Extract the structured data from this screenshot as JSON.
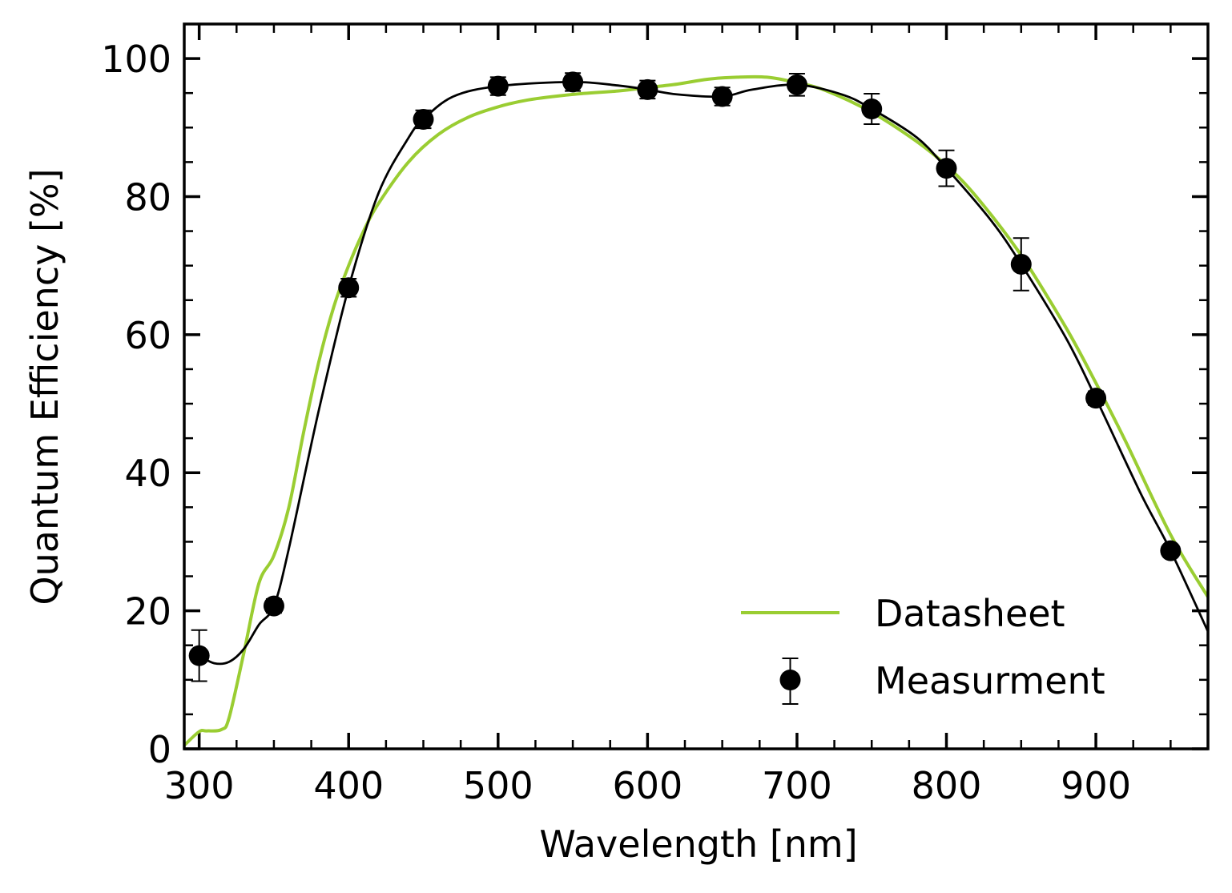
{
  "chart_data": {
    "type": "line",
    "xlabel": "Wavelength [nm]",
    "ylabel": "Quantum Efficiency [%]",
    "xlim": [
      290,
      975
    ],
    "ylim": [
      0,
      105
    ],
    "x_major_ticks": [
      300,
      400,
      500,
      600,
      700,
      800,
      900
    ],
    "x_tick_labels": [
      "300",
      "400",
      "500",
      "600",
      "700",
      "800",
      "900"
    ],
    "x_minor_step": 25,
    "y_major_ticks": [
      0,
      20,
      40,
      60,
      80,
      100
    ],
    "y_tick_labels": [
      "0",
      "20",
      "40",
      "60",
      "80",
      "100"
    ],
    "y_minor_step": 5,
    "grid": false,
    "legend_position": "bottom-right",
    "colors": {
      "datasheet": "#9acd32",
      "measurement": "#000000",
      "fit": "#000000"
    },
    "series": [
      {
        "name": "Datasheet",
        "kind": "line",
        "x": [
          290,
          300,
          305,
          315,
          320,
          330,
          340,
          350,
          360,
          370,
          380,
          390,
          400,
          410,
          420,
          440,
          460,
          480,
          500,
          520,
          550,
          580,
          600,
          620,
          640,
          660,
          680,
          700,
          720,
          750,
          780,
          800,
          820,
          850,
          880,
          900,
          920,
          950,
          975
        ],
        "y": [
          0.5,
          2.5,
          2.6,
          2.8,
          4.5,
          14,
          24,
          28,
          35,
          46,
          56,
          64,
          70,
          75,
          79,
          85,
          89,
          91.5,
          93,
          94,
          94.8,
          95.3,
          95.8,
          96.3,
          97,
          97.3,
          97.3,
          96.5,
          95.3,
          92.2,
          88,
          84.5,
          80,
          71.5,
          61,
          53,
          44.5,
          31,
          22
        ]
      },
      {
        "name": "Measurment",
        "kind": "errorbar",
        "x": [
          300,
          350,
          400,
          450,
          500,
          550,
          600,
          650,
          700,
          750,
          800,
          850,
          900,
          950
        ],
        "y": [
          13.5,
          20.7,
          66.8,
          91.2,
          96,
          96.6,
          95.5,
          94.5,
          96.2,
          92.7,
          84.1,
          70.2,
          50.8,
          28.7
        ],
        "yerr": [
          3.7,
          1.0,
          1.3,
          1.3,
          1.3,
          1.3,
          1.3,
          1.3,
          1.6,
          2.2,
          2.6,
          3.8,
          1.0,
          0.7
        ]
      },
      {
        "name": "",
        "kind": "fit-line",
        "x": [
          300,
          310,
          320,
          330,
          340,
          350,
          360,
          380,
          400,
          420,
          440,
          450,
          470,
          500,
          550,
          580,
          600,
          620,
          650,
          670,
          700,
          730,
          750,
          780,
          800,
          830,
          850,
          880,
          900,
          930,
          950,
          975
        ],
        "y": [
          13.5,
          12.4,
          12.6,
          14.5,
          18,
          20.7,
          29,
          49,
          66.8,
          80.5,
          88.5,
          91.2,
          94.5,
          96,
          96.6,
          96.1,
          95.5,
          94.8,
          94.5,
          95.5,
          96.2,
          94.8,
          92.7,
          88.6,
          84.1,
          76.5,
          70.2,
          59.5,
          50.8,
          37,
          28.7,
          17
        ]
      }
    ],
    "legend": [
      {
        "label": "Datasheet",
        "kind": "line"
      },
      {
        "label": "Measurment",
        "kind": "errorbar"
      }
    ]
  }
}
